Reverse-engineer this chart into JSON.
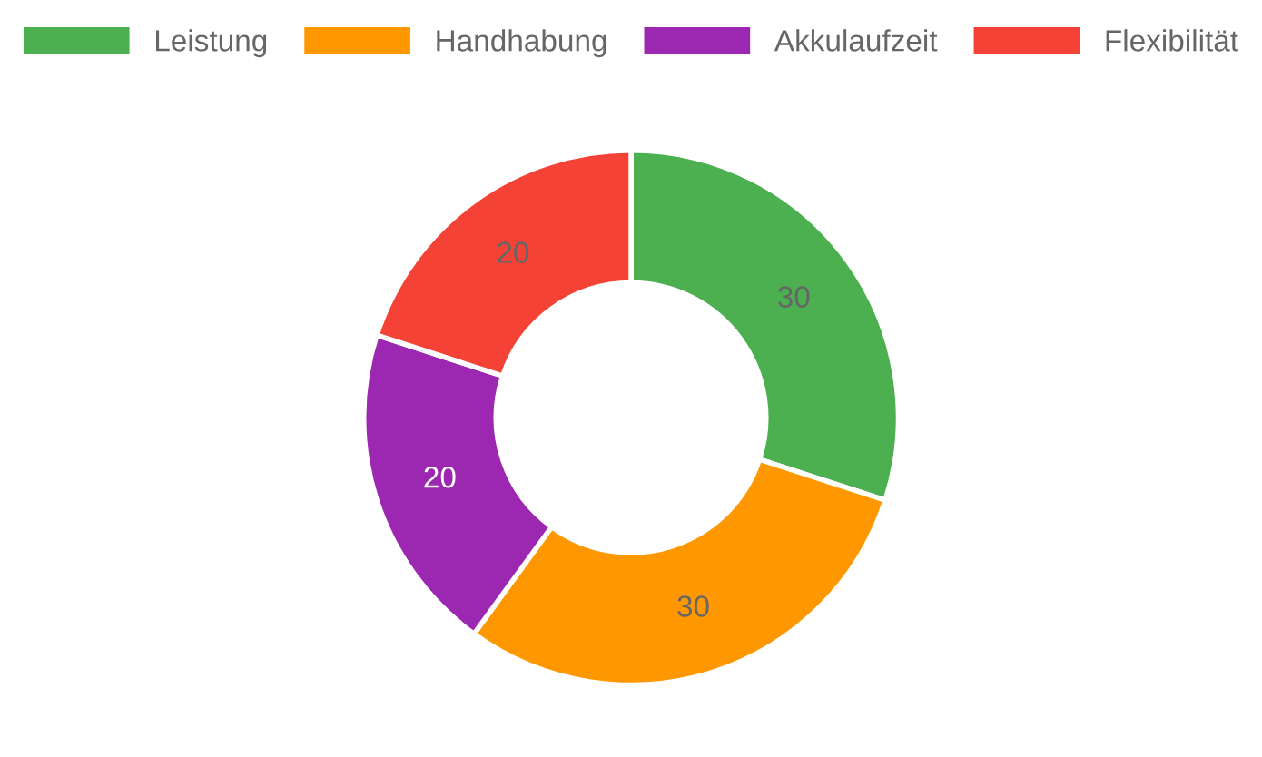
{
  "chart_data": {
    "type": "donut",
    "categories": [
      "Leistung",
      "Handhabung",
      "Akkulaufzeit",
      "Flexibilität"
    ],
    "values": [
      30,
      30,
      20,
      20
    ],
    "colors": [
      "#4caf50",
      "#ff9800",
      "#9c27b0",
      "#f44336"
    ],
    "data_labels": true,
    "legend": "top"
  }
}
